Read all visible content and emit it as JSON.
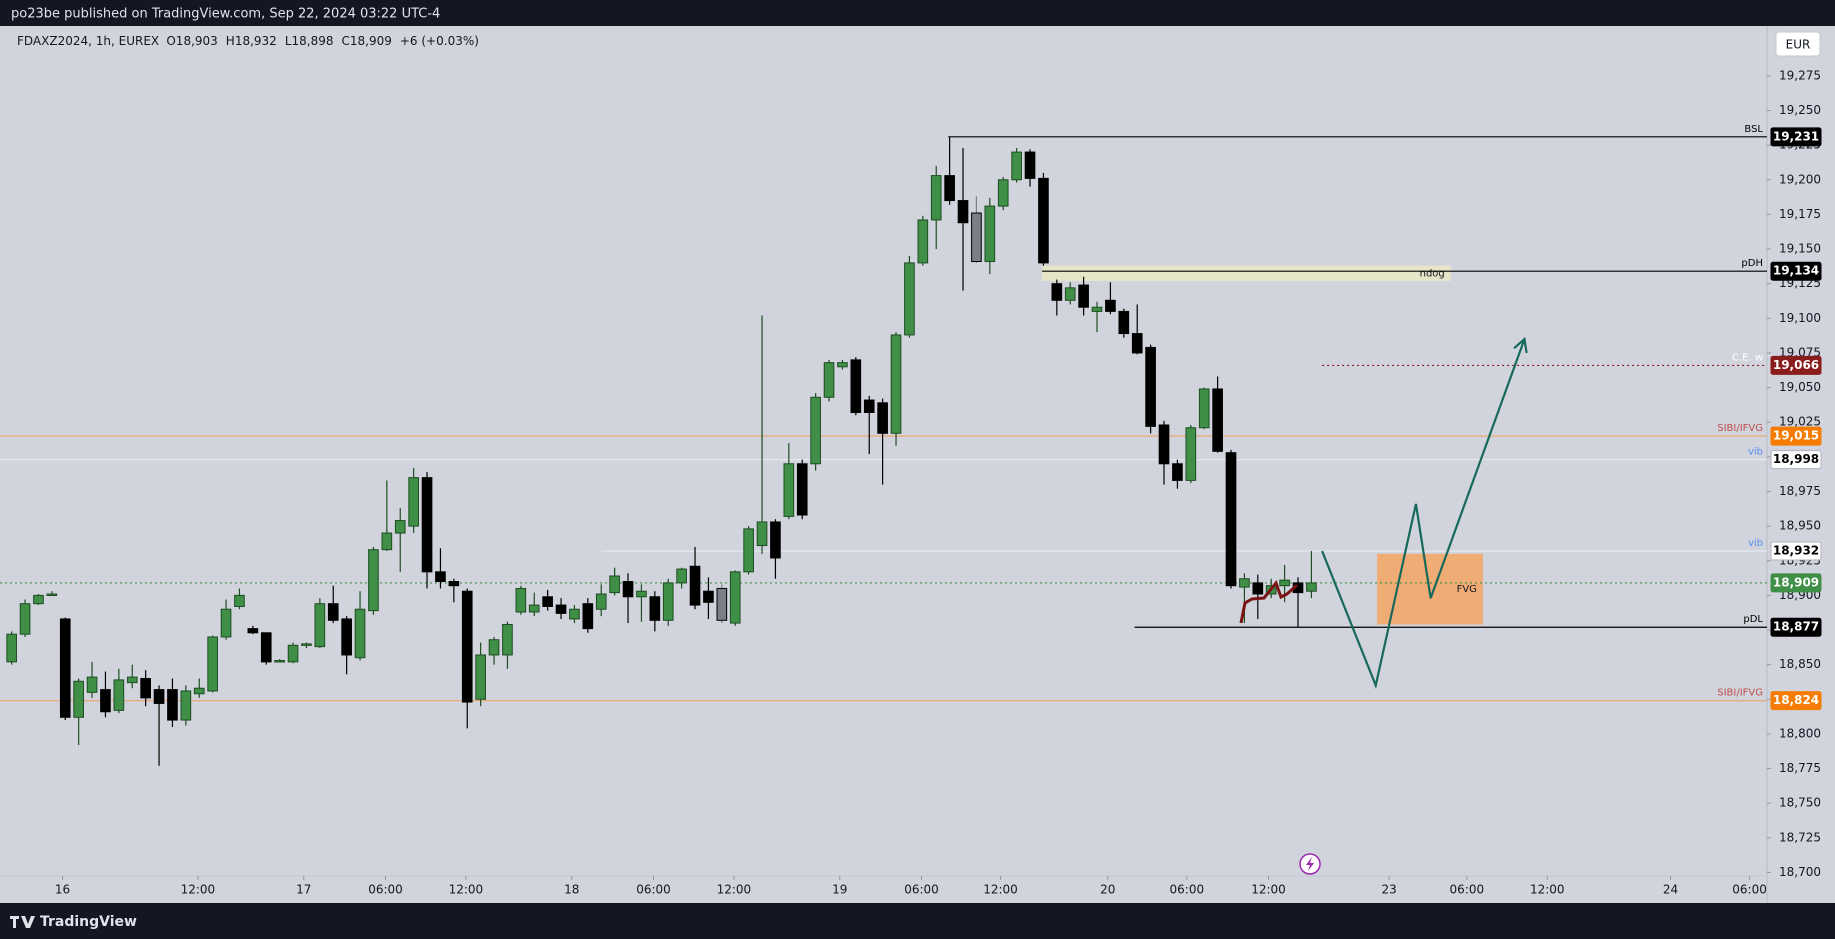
{
  "header": {
    "published": "po23be published on TradingView.com, Sep 22, 2024 03:22 UTC-4",
    "brand": "TradingView"
  },
  "chart_data": {
    "type": "candlestick",
    "symbol": "FDAXZ2024, 1h, EUREX",
    "legend_values": [
      "O18,903",
      "H18,932",
      "L18,898",
      "C18,909",
      "+6 (+0.03%)"
    ],
    "currency": "EUR",
    "open": [
      18852,
      18872,
      18894,
      18901,
      18883,
      18812,
      18830,
      18832,
      18817,
      18837,
      18840,
      18832,
      18832,
      18810,
      18829,
      18831,
      18870,
      18892,
      18876,
      18873,
      18853,
      18852,
      18864,
      18863,
      18894,
      18883,
      18855,
      18889,
      18933,
      18945,
      18950,
      18985,
      18917,
      18910,
      18903,
      18825,
      18857,
      18857,
      18888,
      18888,
      18899,
      18893,
      18883,
      18894,
      18890,
      18902,
      18910,
      18899,
      18899,
      18882,
      18909,
      18921,
      18903,
      18905,
      18880,
      18917,
      18936,
      18953,
      18957,
      18995,
      18995,
      19043,
      19065,
      19070,
      19041,
      19039,
      19017,
      19088,
      19140,
      19171,
      19203,
      19185,
      19176,
      19141,
      19181,
      19200,
      19220,
      19201,
      19125,
      19113,
      19124,
      19105,
      19113,
      19105,
      19089,
      19079,
      19023,
      18995,
      18983,
      19021,
      19049,
      19003,
      18906,
      18909,
      18901,
      18907,
      18909,
      18903
    ],
    "high": [
      18874,
      18897,
      18901,
      18903,
      18884,
      18840,
      18852,
      18845,
      18847,
      18850,
      18846,
      18835,
      18840,
      18835,
      18840,
      18871,
      18897,
      18905,
      18878,
      18873,
      18854,
      18866,
      18866,
      18898,
      18907,
      18885,
      18903,
      18935,
      18983,
      18963,
      18992,
      18989,
      18934,
      18912,
      18905,
      18866,
      18870,
      18881,
      18907,
      18902,
      18904,
      18898,
      18893,
      18898,
      18908,
      18920,
      18916,
      18908,
      18903,
      18912,
      18920,
      18935,
      18913,
      18908,
      18918,
      18950,
      19102,
      18955,
      19010,
      18998,
      19046,
      19070,
      19070,
      19072,
      19044,
      19042,
      19090,
      19145,
      19174,
      19210,
      19231,
      19223,
      19188,
      19187,
      19202,
      19223,
      19222,
      19205,
      19128,
      19126,
      19130,
      19112,
      19126,
      19107,
      19110,
      19081,
      19026,
      18998,
      19023,
      19050,
      19058,
      19005,
      18916,
      18915,
      18912,
      18922,
      18913,
      18932
    ],
    "low": [
      18850,
      18870,
      18893,
      18900,
      18810,
      18792,
      18826,
      18812,
      18815,
      18833,
      18820,
      18777,
      18805,
      18806,
      18826,
      18830,
      18868,
      18890,
      18872,
      18850,
      18852,
      18851,
      18862,
      18862,
      18880,
      18843,
      18853,
      18886,
      18932,
      18917,
      18945,
      18905,
      18905,
      18895,
      18804,
      18820,
      18850,
      18847,
      18886,
      18885,
      18889,
      18883,
      18880,
      18873,
      18885,
      18900,
      18880,
      18881,
      18874,
      18878,
      18905,
      18890,
      18883,
      18880,
      18878,
      18915,
      18930,
      18912,
      18955,
      18955,
      18990,
      19040,
      19063,
      19030,
      19002,
      18980,
      19008,
      19086,
      19138,
      19150,
      19182,
      19120,
      19140,
      19132,
      19178,
      19198,
      19195,
      19138,
      19102,
      19110,
      19102,
      19090,
      19103,
      19086,
      19074,
      19017,
      18980,
      18977,
      18981,
      19020,
      19003,
      18905,
      18880,
      18883,
      18898,
      18895,
      18877,
      18898
    ],
    "close": [
      18872,
      18894,
      18900,
      18901,
      18812,
      18838,
      18841,
      18816,
      18839,
      18841,
      18826,
      18822,
      18810,
      18831,
      18833,
      18870,
      18890,
      18900,
      18873,
      18852,
      18853,
      18864,
      18865,
      18894,
      18882,
      18857,
      18890,
      18933,
      18945,
      18954,
      18985,
      18917,
      18910,
      18907,
      18823,
      18857,
      18868,
      18879,
      18905,
      18893,
      18892,
      18887,
      18890,
      18876,
      18901,
      18914,
      18899,
      18903,
      18882,
      18909,
      18919,
      18893,
      18895,
      18882,
      18917,
      18948,
      18953,
      18927,
      18995,
      18958,
      19043,
      19068,
      19068,
      19032,
      19032,
      19017,
      19088,
      19140,
      19171,
      19203,
      19185,
      19169,
      19141,
      19181,
      19200,
      19220,
      19201,
      19140,
      19113,
      19122,
      19108,
      19108,
      19105,
      19089,
      19075,
      19022,
      18995,
      18983,
      19021,
      19049,
      19004,
      18907,
      18912,
      18901,
      18907,
      18911,
      18902,
      18909
    ],
    "candle_colors": {
      "up": "#3f8f46",
      "down": "#000000"
    },
    "gray_candles": [
      53,
      72
    ],
    "gray_color": "#7b7e88",
    "ylim": [
      18696,
      19311
    ],
    "yticks": [
      {
        "value": 18700,
        "label": "18,700"
      },
      {
        "value": 18725,
        "label": "18,725"
      },
      {
        "value": 18750,
        "label": "18,750"
      },
      {
        "value": 18775,
        "label": "18,775"
      },
      {
        "value": 18800,
        "label": "18,800"
      },
      {
        "value": 18825,
        "label": "18,825"
      },
      {
        "value": 18850,
        "label": "18,850"
      },
      {
        "value": 18875,
        "label": "18,875"
      },
      {
        "value": 18900,
        "label": "18,900"
      },
      {
        "value": 18925,
        "label": "18,925"
      },
      {
        "value": 18950,
        "label": "18,950"
      },
      {
        "value": 18975,
        "label": "18,975"
      },
      {
        "value": 19000,
        "label": "19,000"
      },
      {
        "value": 19025,
        "label": "19,025"
      },
      {
        "value": 19050,
        "label": "19,050"
      },
      {
        "value": 19075,
        "label": "19,075"
      },
      {
        "value": 19100,
        "label": "19,100"
      },
      {
        "value": 19125,
        "label": "19,125"
      },
      {
        "value": 19150,
        "label": "19,150"
      },
      {
        "value": 19175,
        "label": "19,175"
      },
      {
        "value": 19200,
        "label": "19,200"
      },
      {
        "value": 19225,
        "label": "19,225"
      },
      {
        "value": 19250,
        "label": "19,250"
      },
      {
        "value": 19275,
        "label": "19,275"
      }
    ],
    "xlim": [
      -0.87,
      131
    ],
    "xticks": [
      {
        "value": 3.8,
        "label": "16"
      },
      {
        "value": 13.9,
        "label": "12:00"
      },
      {
        "value": 21.8,
        "label": "17"
      },
      {
        "value": 27.9,
        "label": "06:00"
      },
      {
        "value": 33.9,
        "label": "12:00"
      },
      {
        "value": 41.8,
        "label": "18"
      },
      {
        "value": 47.9,
        "label": "06:00"
      },
      {
        "value": 53.9,
        "label": "12:00"
      },
      {
        "value": 61.8,
        "label": "19"
      },
      {
        "value": 67.9,
        "label": "06:00"
      },
      {
        "value": 73.8,
        "label": "12:00"
      },
      {
        "value": 81.8,
        "label": "20"
      },
      {
        "value": 87.7,
        "label": "06:00"
      },
      {
        "value": 93.8,
        "label": "12:00"
      },
      {
        "value": 102.8,
        "label": "23"
      },
      {
        "value": 108.6,
        "label": "06:00"
      },
      {
        "value": 114.6,
        "label": "12:00"
      },
      {
        "value": 123.8,
        "label": "24"
      },
      {
        "value": 129.7,
        "label": "06:00"
      }
    ],
    "levels": [
      {
        "name": "BSL",
        "price": 19231,
        "price_label": "19,231",
        "color": "#000000",
        "text_color": "#ffffff",
        "name_color": "#000000",
        "start": 69.9
      },
      {
        "name": "pDH",
        "price": 19134,
        "price_label": "19,134",
        "color": "#000000",
        "text_color": "#ffffff",
        "name_color": "#000000",
        "start": 76.9
      },
      {
        "name": "C.E. w",
        "price": 19066,
        "price_label": "19,066",
        "color": "#8b1c1c",
        "text_color": "#ffffff",
        "name_color": "#ffffff",
        "start": 97.8,
        "dashed": true
      },
      {
        "name": "SIBI/IFVG",
        "price": 19015,
        "price_label": "19,015",
        "color": "#f57c00",
        "text_color": "#ffffff",
        "name_color": "#c0504d",
        "line_color": "#eea56a"
      },
      {
        "name": "vib",
        "price": 18998,
        "price_label": "18,998",
        "color": "#ffffff",
        "text_color": "#000000",
        "name_color": "#5b8def",
        "line_color": "#e8e9ee"
      },
      {
        "name": "vib",
        "price": 18932,
        "price_label": "18,932",
        "color": "#ffffff",
        "text_color": "#000000",
        "name_color": "#5b8def",
        "line_color": "#e8e9ee",
        "start": 44
      },
      {
        "price": 18909,
        "price_label": "18,909",
        "color": "#3f8f46",
        "text_color": "#ffffff",
        "dashed": true
      },
      {
        "name": "pDL",
        "price": 18877,
        "price_label": "18,877",
        "color": "#000000",
        "text_color": "#ffffff",
        "name_color": "#000000",
        "start": 83.8
      },
      {
        "name": "SIBI/IFVG",
        "price": 18824,
        "price_label": "18,824",
        "color": "#f57c00",
        "text_color": "#ffffff",
        "name_color": "#c0504d",
        "line_color": "#eea56a"
      }
    ],
    "zones": [
      {
        "label": "ndog",
        "x": [
          76.9,
          107.4
        ],
        "y": [
          19127,
          19138
        ],
        "color": "#ebe7c4"
      },
      {
        "label": "FVG",
        "x": [
          101.9,
          109.8
        ],
        "y": [
          18879,
          18930
        ],
        "color": "#f4a462"
      }
    ],
    "projection": {
      "x": [
        97.8,
        101.8,
        104.8,
        105.9,
        112.9
      ],
      "y": [
        18932,
        18835,
        18966,
        18898,
        19085
      ],
      "color": "#17695b"
    }
  }
}
